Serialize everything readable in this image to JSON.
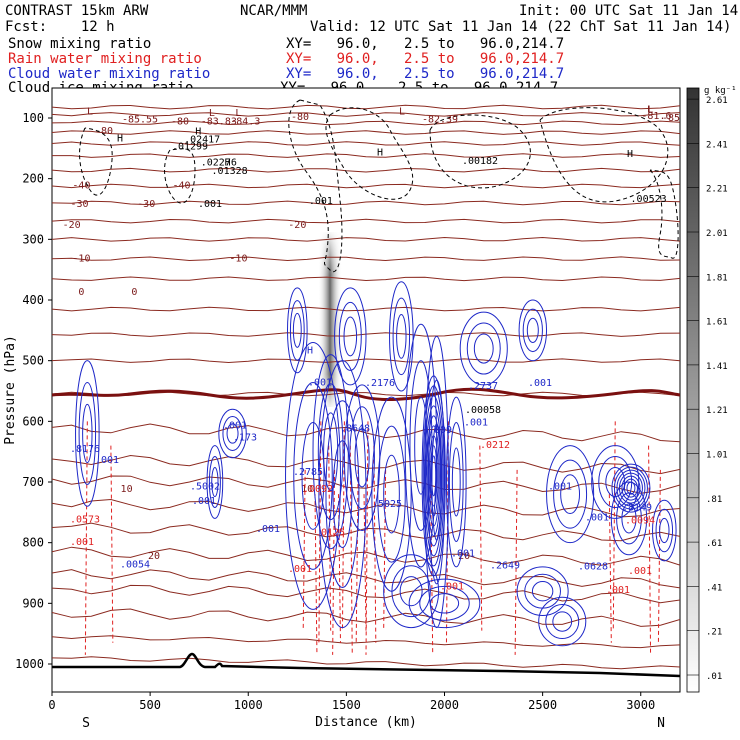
{
  "header": {
    "model": "CONTRAST 15km ARW",
    "center": "NCAR/MMM",
    "init": "Init: 00 UTC Sat 11 Jan 14",
    "fcst": "Fcst:    12 h",
    "valid": "Valid: 12 UTC Sat 11 Jan 14 (22 ChT Sat 11 Jan 14)"
  },
  "legend": [
    {
      "name": "Snow mixing ratio",
      "xy": "XY=   96.0,   2.5 to   96.0,214.7",
      "color": "#000000"
    },
    {
      "name": "Rain water mixing ratio",
      "xy": "XY=   96.0,   2.5 to   96.0,214.7",
      "color": "#e02020"
    },
    {
      "name": "Cloud water mixing ratio",
      "xy": "XY=   96.0,   2.5 to   96.0,214.7",
      "color": "#1e28c8"
    },
    {
      "name": "Cloud ice mixing ratio",
      "xy": "XY=   96.0,   2.5 to   96.0,214.7",
      "color": "#000000"
    }
  ],
  "chart_data": {
    "type": "contour",
    "xlabel": "Distance (km)",
    "ylabel": "Pressure (hPa)",
    "xlim": [
      0,
      3200
    ],
    "ylim": [
      1050,
      50
    ],
    "x_ticks": [
      0,
      500,
      1000,
      1500,
      2000,
      2500,
      3000
    ],
    "y_ticks": [
      100,
      200,
      300,
      400,
      500,
      600,
      700,
      800,
      900,
      1000
    ],
    "x_end_labels": {
      "left": "S",
      "right": "N"
    },
    "colorbar": {
      "unit": "g kg⁻¹",
      "levels": [
        ".01",
        ".21",
        ".41",
        ".61",
        ".81",
        "1.01",
        "1.21",
        "1.41",
        "1.61",
        "1.81",
        "2.01",
        "2.21",
        "2.41",
        "2.61"
      ]
    },
    "temperature_isotherms": [
      {
        "label": "-80",
        "p": 120
      },
      {
        "label": "-60",
        "p": 140
      },
      {
        "label": "-40",
        "p": 210
      },
      {
        "label": "-30",
        "p": 240
      },
      {
        "label": "-20",
        "p": 275
      },
      {
        "label": "-10",
        "p": 330
      },
      {
        "label": "0",
        "p": 385
      },
      {
        "label": "10",
        "p": 710
      },
      {
        "label": "20",
        "p": 820
      }
    ],
    "temperature_lines_p": [
      82,
      94,
      108,
      124,
      142,
      162,
      186,
      212,
      240,
      270,
      300,
      332,
      365,
      415,
      457,
      500,
      555,
      610,
      662,
      695,
      735,
      775,
      815,
      850,
      875,
      915,
      955,
      990
    ],
    "annotations": [
      {
        "text": "L",
        "x": 90,
        "p": 88,
        "color": "#7a1818"
      },
      {
        "text": "-85.55",
        "x": 140,
        "p": 101,
        "color": "#7a1818"
      },
      {
        "text": "-80",
        "x": 180,
        "p": 104,
        "color": "#7a1818"
      },
      {
        "text": "-80",
        "x": 300,
        "p": 97,
        "color": "#7a1818"
      },
      {
        "text": "L",
        "x": 402,
        "p": 88,
        "color": "#7a1818"
      },
      {
        "text": "-82.39",
        "x": 440,
        "p": 101,
        "color": "#7a1818"
      },
      {
        "text": "L",
        "x": 650,
        "p": 84,
        "color": "#7a1818"
      },
      {
        "text": "-85.47",
        "x": 700,
        "p": 98,
        "color": "#7a1818"
      },
      {
        "text": "L",
        "x": 815,
        "p": 90,
        "color": "#7a1818"
      },
      {
        "text": "-83.83",
        "x": 850,
        "p": 104,
        "color": "#7a1818"
      },
      {
        "text": "L",
        "x": 950,
        "p": 90,
        "color": "#7a1818"
      },
      {
        "text": "-84.3",
        "x": 985,
        "p": 104,
        "color": "#7a1818"
      },
      {
        "text": "L",
        "x": 3050,
        "p": 84,
        "color": "#7a1818"
      },
      {
        "text": "-81.6",
        "x": 3080,
        "p": 95,
        "color": "#7a1818"
      },
      {
        "text": "H",
        "x": 120,
        "p": 132,
        "color": "#000000"
      },
      {
        "text": ".01299",
        "x": 190,
        "p": 145,
        "color": "#000000"
      },
      {
        "text": "H",
        "x": 380,
        "p": 155,
        "color": "#000000"
      },
      {
        "text": ".00182",
        "x": 480,
        "p": 169,
        "color": "#000000"
      },
      {
        "text": "H",
        "x": 630,
        "p": 158,
        "color": "#000000"
      },
      {
        "text": ".02276",
        "x": 850,
        "p": 172,
        "color": "#000000"
      },
      {
        "text": "H",
        "x": 745,
        "p": 121,
        "color": "#000000"
      },
      {
        "text": ".02417",
        "x": 765,
        "p": 134,
        "color": "#000000"
      },
      {
        "text": "H",
        "x": 895,
        "p": 172,
        "color": "#000000"
      },
      {
        "text": ".01328",
        "x": 905,
        "p": 186,
        "color": "#000000"
      },
      {
        "text": ".00523",
        "x": 3040,
        "p": 232,
        "color": "#000000"
      },
      {
        "text": ".001",
        "x": 210,
        "p": 240,
        "color": "#000000"
      },
      {
        "text": ".001",
        "x": 1370,
        "p": 235,
        "color": "#000000"
      },
      {
        "text": "H",
        "x": 310,
        "p": 482,
        "color": "#1e28c8"
      },
      {
        "text": ".001",
        "x": 320,
        "p": 534,
        "color": "#1e28c8"
      },
      {
        "text": ".2176",
        "x": 380,
        "p": 535,
        "color": "#1e28c8"
      },
      {
        "text": ".2737",
        "x": 483,
        "p": 540,
        "color": "#1e28c8"
      },
      {
        "text": ".001",
        "x": 540,
        "p": 535,
        "color": "#1e28c8"
      },
      {
        "text": ".00058",
        "x": 483,
        "p": 580,
        "color": "#000000"
      },
      {
        "text": ".001",
        "x": 235,
        "p": 605,
        "color": "#1e28c8"
      },
      {
        "text": ".173",
        "x": 245,
        "p": 625,
        "color": "#1e28c8"
      },
      {
        "text": ".8648",
        "x": 355,
        "p": 610,
        "color": "#1e28c8"
      },
      {
        "text": ".809",
        "x": 440,
        "p": 613,
        "color": "#1e28c8"
      },
      {
        "text": ".001",
        "x": 476,
        "p": 600,
        "color": "#1e28c8"
      },
      {
        "text": ".0212",
        "x": 495,
        "p": 637,
        "color": "#e02020"
      },
      {
        "text": ".8176",
        "x": 85,
        "p": 644,
        "color": "#1e28c8"
      },
      {
        "text": ".001",
        "x": 107,
        "p": 662,
        "color": "#1e28c8"
      },
      {
        "text": ".2785",
        "x": 308,
        "p": 682,
        "color": "#1e28c8"
      },
      {
        "text": ".5002",
        "x": 205,
        "p": 706,
        "color": "#1e28c8"
      },
      {
        "text": ".001",
        "x": 204,
        "p": 730,
        "color": "#1e28c8"
      },
      {
        "text": ".5025",
        "x": 387,
        "p": 735,
        "color": "#1e28c8"
      },
      {
        "text": ".0092",
        "x": 318,
        "p": 710,
        "color": "#e02020"
      },
      {
        "text": ".001",
        "x": 560,
        "p": 706,
        "color": "#1e28c8"
      },
      {
        "text": ".8149",
        "x": 637,
        "p": 740,
        "color": "#1e28c8"
      },
      {
        "text": ".0094",
        "x": 640,
        "p": 762,
        "color": "#e02020"
      },
      {
        "text": ".001",
        "x": 597,
        "p": 757,
        "color": "#1e28c8"
      },
      {
        "text": ".0573",
        "x": 85,
        "p": 760,
        "color": "#e02020"
      },
      {
        "text": ".001",
        "x": 268,
        "p": 776,
        "color": "#1e28c8"
      },
      {
        "text": ".0125",
        "x": 330,
        "p": 782,
        "color": "#e02020"
      },
      {
        "text": ".001",
        "x": 82,
        "p": 797,
        "color": "#e02020"
      },
      {
        "text": ".0054",
        "x": 135,
        "p": 834,
        "color": "#1e28c8"
      },
      {
        "text": ".001",
        "x": 463,
        "p": 816,
        "color": "#1e28c8"
      },
      {
        "text": ".2649",
        "x": 505,
        "p": 836,
        "color": "#1e28c8"
      },
      {
        "text": ".0628",
        "x": 593,
        "p": 838,
        "color": "#1e28c8"
      },
      {
        "text": ".001",
        "x": 300,
        "p": 842,
        "color": "#e02020"
      },
      {
        "text": ".001",
        "x": 640,
        "p": 845,
        "color": "#e02020"
      },
      {
        "text": ".001",
        "x": 452,
        "p": 871,
        "color": "#e02020"
      },
      {
        "text": ".001",
        "x": 618,
        "p": 876,
        "color": "#e02020"
      }
    ]
  }
}
